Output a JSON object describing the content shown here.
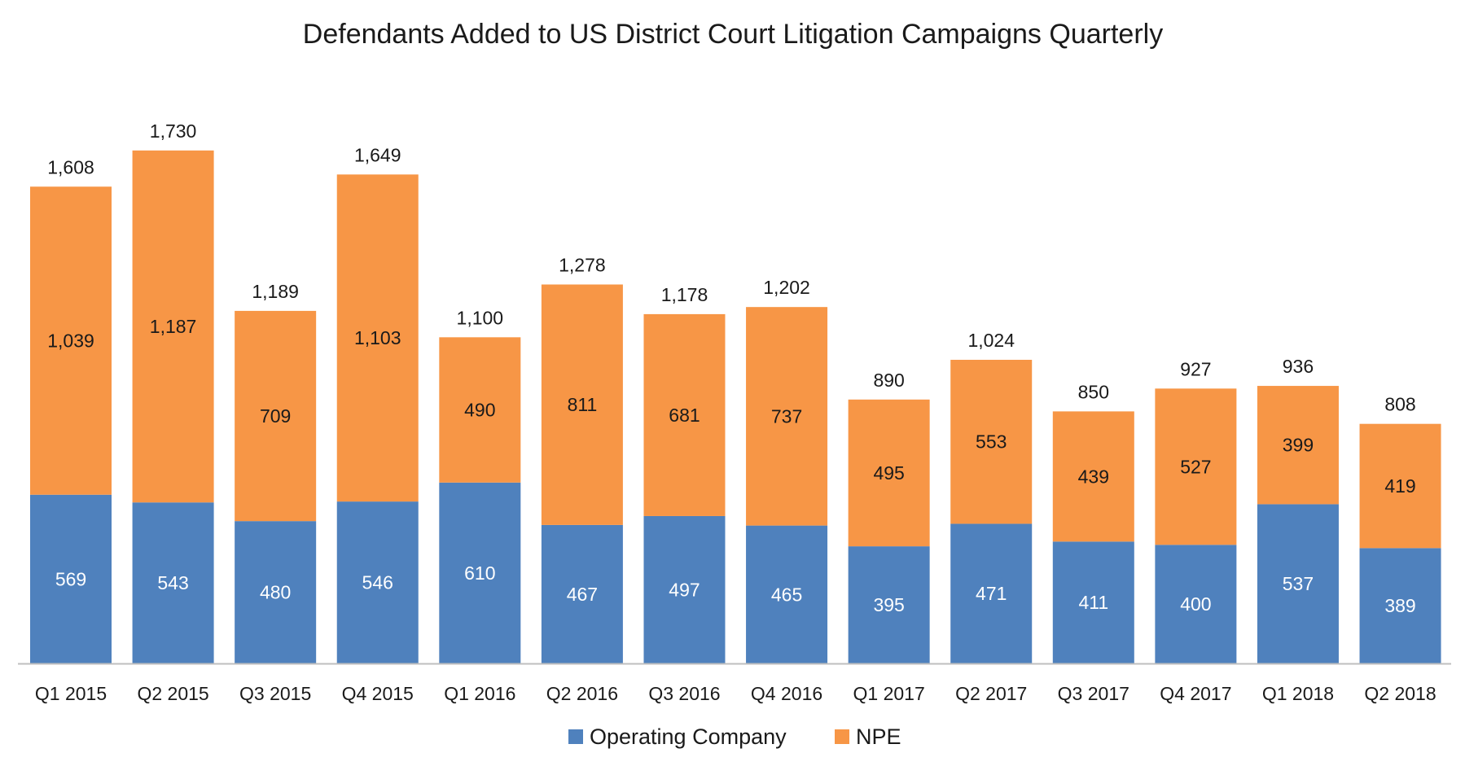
{
  "chart_data": {
    "type": "bar",
    "stacked": true,
    "title": "Defendants Added to US District Court Litigation Campaigns Quarterly",
    "categories": [
      "Q1 2015",
      "Q2 2015",
      "Q3 2015",
      "Q4 2015",
      "Q1 2016",
      "Q2 2016",
      "Q3 2016",
      "Q4 2016",
      "Q1 2017",
      "Q2 2017",
      "Q3 2017",
      "Q4 2017",
      "Q1 2018",
      "Q2 2018"
    ],
    "series": [
      {
        "name": "Operating Company",
        "color": "#4f81bd",
        "values": [
          569,
          543,
          480,
          546,
          610,
          467,
          497,
          465,
          395,
          471,
          411,
          400,
          537,
          389
        ],
        "labels": [
          "569",
          "543",
          "480",
          "546",
          "610",
          "467",
          "497",
          "465",
          "395",
          "471",
          "411",
          "400",
          "537",
          "389"
        ]
      },
      {
        "name": "NPE",
        "color": "#f79646",
        "values": [
          1039,
          1187,
          709,
          1103,
          490,
          811,
          681,
          737,
          495,
          553,
          439,
          527,
          399,
          419
        ],
        "labels": [
          "1,039",
          "1,187",
          "709",
          "1,103",
          "490",
          "811",
          "681",
          "737",
          "495",
          "553",
          "439",
          "527",
          "399",
          "419"
        ]
      }
    ],
    "totals": [
      1608,
      1730,
      1189,
      1649,
      1100,
      1278,
      1178,
      1202,
      890,
      1024,
      850,
      927,
      936,
      808
    ],
    "total_labels": [
      "1,608",
      "1,730",
      "1,189",
      "1,649",
      "1,100",
      "1,278",
      "1,178",
      "1,202",
      "890",
      "1,024",
      "850",
      "927",
      "936",
      "808"
    ],
    "xlabel": "",
    "ylabel": "",
    "ylim": [
      0,
      1900
    ],
    "grid": false,
    "y_axis_visible": false,
    "legend_position": "bottom-center"
  }
}
